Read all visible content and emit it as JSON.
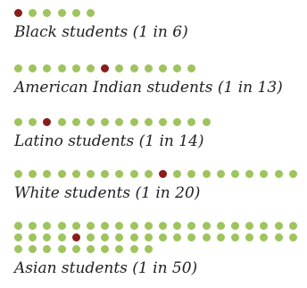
{
  "chart_data": {
    "type": "dot-array",
    "colors": {
      "highlight": "#8a1c1c",
      "base": "#9ec45e"
    },
    "groups": [
      {
        "label": "Black students (1 in 6)",
        "total": 6,
        "highlight_position": 1
      },
      {
        "label": "American Indian students (1 in 13)",
        "total": 13,
        "highlight_position": 7
      },
      {
        "label": "Latino students (1 in 14)",
        "total": 14,
        "highlight_position": 3
      },
      {
        "label": "White students (1 in 20)",
        "total": 20,
        "highlight_position": 11
      },
      {
        "label": "Asian students (1 in 50)",
        "total": 50,
        "highlight_position": 25
      }
    ]
  }
}
